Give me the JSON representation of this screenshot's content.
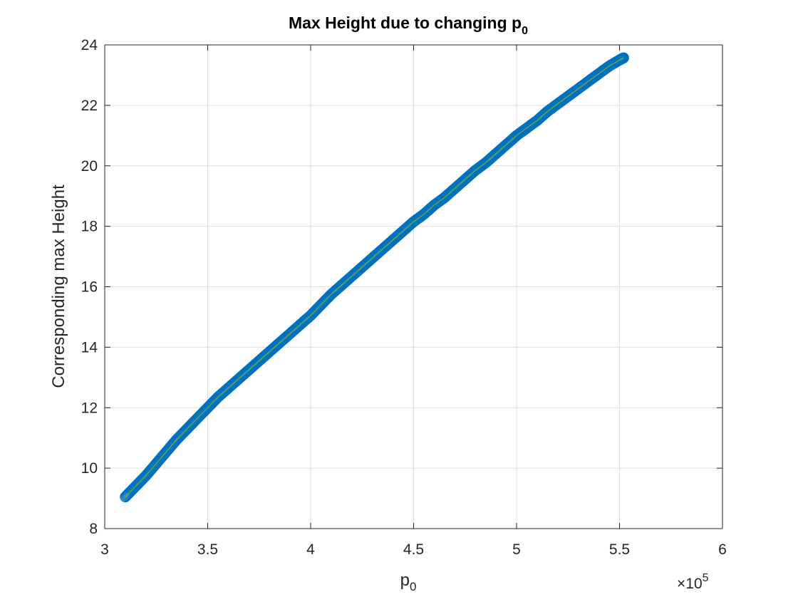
{
  "chart_data": {
    "type": "scatter",
    "title": "Max Height due to changing p",
    "title_subscript": "0",
    "xlabel": "p",
    "xlabel_subscript": "0",
    "ylabel": "Corresponding max Height",
    "xlim": [
      3,
      6
    ],
    "ylim": [
      8,
      24
    ],
    "x_exponent_label": "×10",
    "x_exponent_power": "5",
    "xticks": [
      3,
      3.5,
      4,
      4.5,
      5,
      5.5,
      6
    ],
    "xtick_labels": [
      "3",
      "3.5",
      "4",
      "4.5",
      "5",
      "5.5",
      "6"
    ],
    "yticks": [
      8,
      10,
      12,
      14,
      16,
      18,
      20,
      22,
      24
    ],
    "ytick_labels": [
      "8",
      "10",
      "12",
      "14",
      "16",
      "18",
      "20",
      "22",
      "24"
    ],
    "grid": true,
    "marker": "circle",
    "marker_color": "#0072BD",
    "fit_line_color": "#77AC30",
    "x": [
      3.1,
      3.15,
      3.2,
      3.25,
      3.3,
      3.35,
      3.4,
      3.45,
      3.5,
      3.55,
      3.6,
      3.65,
      3.7,
      3.75,
      3.8,
      3.85,
      3.9,
      3.95,
      4.0,
      4.05,
      4.1,
      4.15,
      4.2,
      4.25,
      4.3,
      4.35,
      4.4,
      4.45,
      4.5,
      4.55,
      4.6,
      4.65,
      4.7,
      4.75,
      4.8,
      4.85,
      4.9,
      4.95,
      5.0,
      5.05,
      5.1,
      5.15,
      5.2,
      5.25,
      5.3,
      5.35,
      5.4,
      5.45,
      5.5,
      5.52
    ],
    "y": [
      9.05,
      9.4,
      9.75,
      10.15,
      10.55,
      10.95,
      11.3,
      11.65,
      12.0,
      12.35,
      12.65,
      12.95,
      13.25,
      13.55,
      13.85,
      14.15,
      14.45,
      14.75,
      15.05,
      15.4,
      15.75,
      16.05,
      16.35,
      16.65,
      16.95,
      17.25,
      17.55,
      17.85,
      18.15,
      18.4,
      18.7,
      18.95,
      19.25,
      19.55,
      19.85,
      20.1,
      20.4,
      20.7,
      21.0,
      21.25,
      21.5,
      21.8,
      22.05,
      22.3,
      22.55,
      22.8,
      23.05,
      23.3,
      23.5,
      23.57
    ]
  }
}
